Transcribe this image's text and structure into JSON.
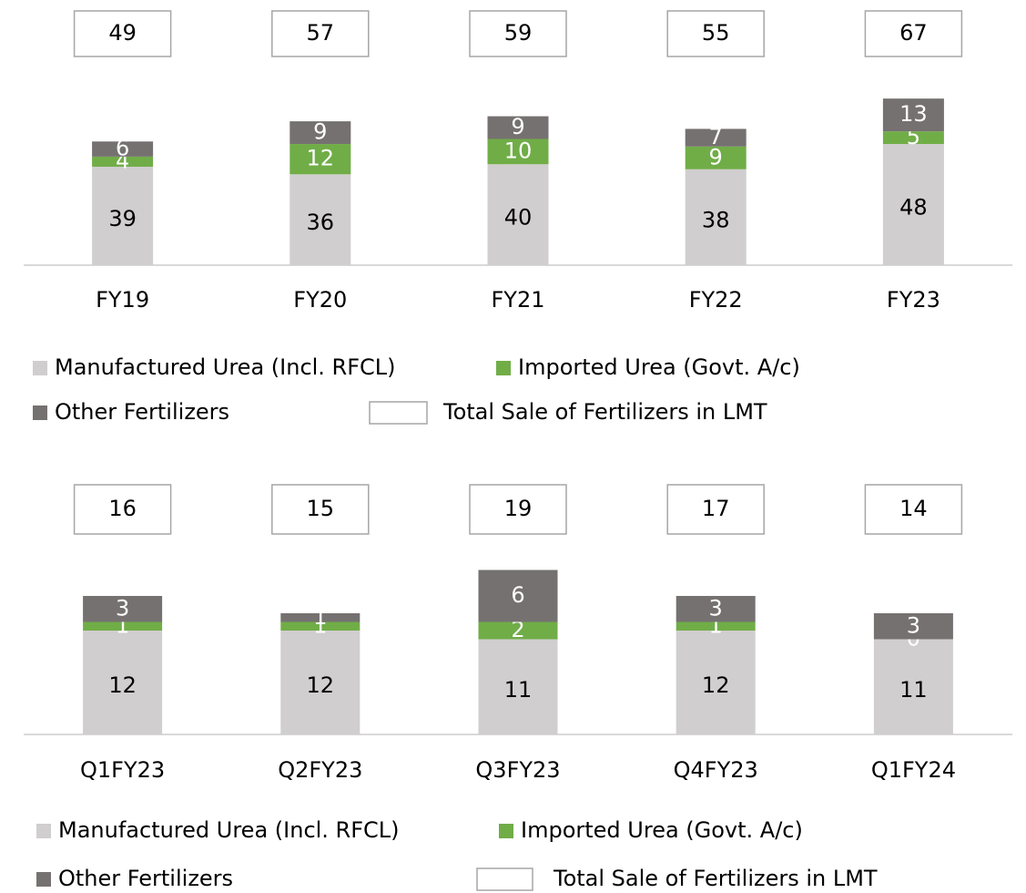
{
  "chart_data": [
    {
      "type": "stacked_bar",
      "categories": [
        "FY19",
        "FY20",
        "FY21",
        "FY22",
        "FY23"
      ],
      "series": [
        {
          "name": "Manufactured Urea (Incl. RFCL)",
          "color": "#d0cece",
          "values": [
            39,
            36,
            40,
            38,
            48
          ]
        },
        {
          "name": "Imported Urea (Govt. A/c)",
          "color": "#70ad47",
          "values": [
            4,
            12,
            10,
            9,
            5
          ]
        },
        {
          "name": "Other Fertilizers",
          "color": "#767171",
          "values": [
            6,
            9,
            9,
            7,
            13
          ]
        }
      ],
      "totals": {
        "name": "Total Sale of Fertilizers in LMT",
        "values": [
          49,
          57,
          59,
          55,
          67
        ]
      }
    },
    {
      "type": "stacked_bar",
      "categories": [
        "Q1FY23",
        "Q2FY23",
        "Q3FY23",
        "Q4FY23",
        "Q1FY24"
      ],
      "series": [
        {
          "name": "Manufactured Urea (Incl. RFCL)",
          "color": "#d0cece",
          "values": [
            12,
            12,
            11,
            12,
            11
          ]
        },
        {
          "name": "Imported Urea (Govt. A/c)",
          "color": "#70ad47",
          "values": [
            1,
            1,
            2,
            1,
            0
          ]
        },
        {
          "name": "Other Fertilizers",
          "color": "#767171",
          "values": [
            3,
            1,
            6,
            3,
            3
          ]
        }
      ],
      "totals": {
        "name": "Total Sale of Fertilizers in LMT",
        "values": [
          16,
          15,
          19,
          17,
          14
        ]
      }
    }
  ]
}
